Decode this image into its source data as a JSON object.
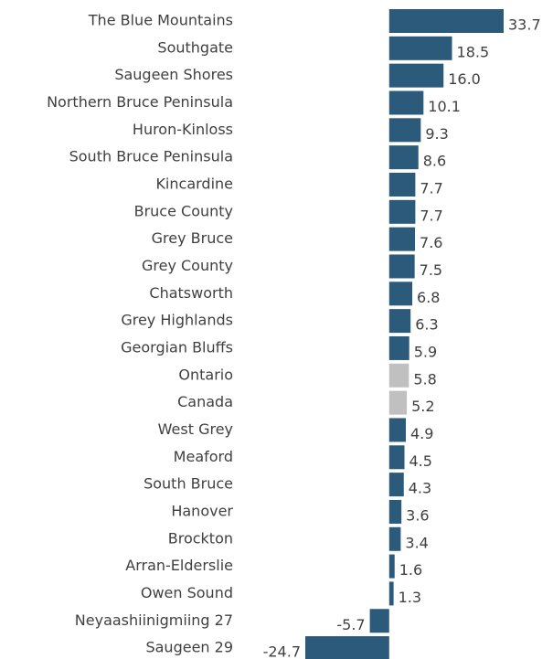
{
  "chart_data": {
    "type": "barh",
    "categories": [
      "The Blue Mountains",
      "Southgate",
      "Saugeen Shores",
      "Northern Bruce Peninsula",
      "Huron-Kinloss",
      "South Bruce Peninsula",
      "Kincardine",
      "Bruce County",
      "Grey Bruce",
      "Grey County",
      "Chatsworth",
      "Grey Highlands",
      "Georgian Bluffs",
      "Ontario",
      "Canada",
      "West Grey",
      "Meaford",
      "South Bruce",
      "Hanover",
      "Brockton",
      "Arran-Elderslie",
      "Owen Sound",
      "Neyaashiinigmiing 27",
      "Saugeen 29"
    ],
    "values": [
      33.7,
      18.5,
      16.0,
      10.1,
      9.3,
      8.6,
      7.7,
      7.7,
      7.6,
      7.5,
      6.8,
      6.3,
      5.9,
      5.8,
      5.2,
      4.9,
      4.5,
      4.3,
      3.6,
      3.4,
      1.6,
      1.3,
      -5.7,
      -24.7
    ],
    "value_labels": [
      "33.7",
      "18.5",
      "16.0",
      "10.1",
      "9.3",
      "8.6",
      "7.7",
      "7.7",
      "7.6",
      "7.5",
      "6.8",
      "6.3",
      "5.9",
      "5.8",
      "5.2",
      "4.9",
      "4.5",
      "4.3",
      "3.6",
      "3.4",
      "1.6",
      "1.3",
      "-5.7",
      "-24.7"
    ],
    "colors": [
      "#2c5a7a",
      "#2c5a7a",
      "#2c5a7a",
      "#2c5a7a",
      "#2c5a7a",
      "#2c5a7a",
      "#2c5a7a",
      "#2c5a7a",
      "#2c5a7a",
      "#2c5a7a",
      "#2c5a7a",
      "#2c5a7a",
      "#2c5a7a",
      "#c0c0c0",
      "#c0c0c0",
      "#2c5a7a",
      "#2c5a7a",
      "#2c5a7a",
      "#2c5a7a",
      "#2c5a7a",
      "#2c5a7a",
      "#2c5a7a",
      "#2c5a7a",
      "#2c5a7a"
    ]
  }
}
